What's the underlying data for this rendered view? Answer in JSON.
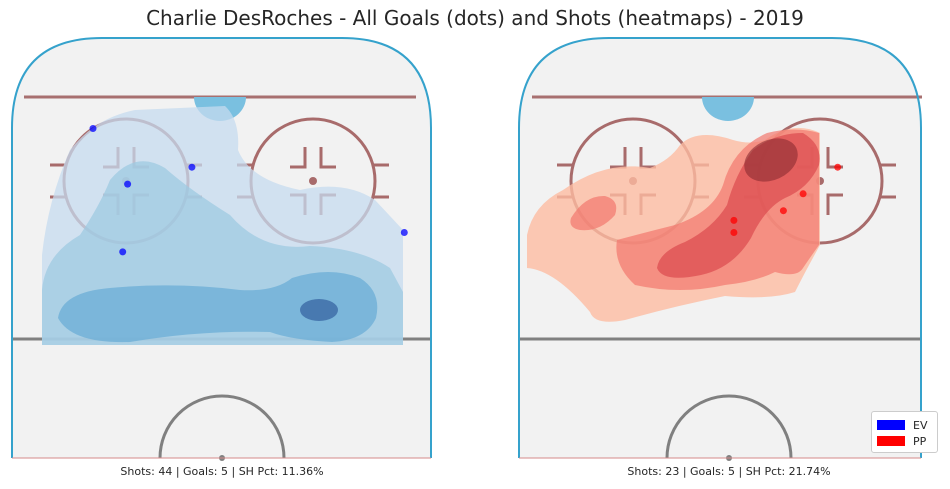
{
  "title": "Charlie DesRoches - All Goals (dots) and Shots (heatmaps) - 2019",
  "colors": {
    "ev": "#0000ff",
    "pp": "#ff0000"
  },
  "legend": {
    "entries": [
      {
        "label": "EV",
        "color": "#0000ff"
      },
      {
        "label": "PP",
        "color": "#ff0000"
      }
    ]
  },
  "chart_data": [
    {
      "type": "heatmap",
      "situation": "EV",
      "caption": "Shots: 44 | Goals: 5 | SH Pct: 11.36%",
      "stats": {
        "shots": 44,
        "goals": 5,
        "sh_pct": 11.36
      },
      "goals_xy": [
        [
          -26,
          87
        ],
        [
          -6,
          71
        ],
        [
          -19,
          64
        ],
        [
          -20,
          36
        ],
        [
          37,
          44
        ]
      ]
    },
    {
      "type": "heatmap",
      "situation": "PP",
      "caption": "Shots: 23 | Goals: 5 | SH Pct: 21.74%",
      "stats": {
        "shots": 23,
        "goals": 5,
        "sh_pct": 21.74
      },
      "goals_xy": [
        [
          22,
          71
        ],
        [
          15,
          60
        ],
        [
          11,
          53
        ],
        [
          1,
          49
        ],
        [
          1,
          44
        ]
      ]
    }
  ]
}
